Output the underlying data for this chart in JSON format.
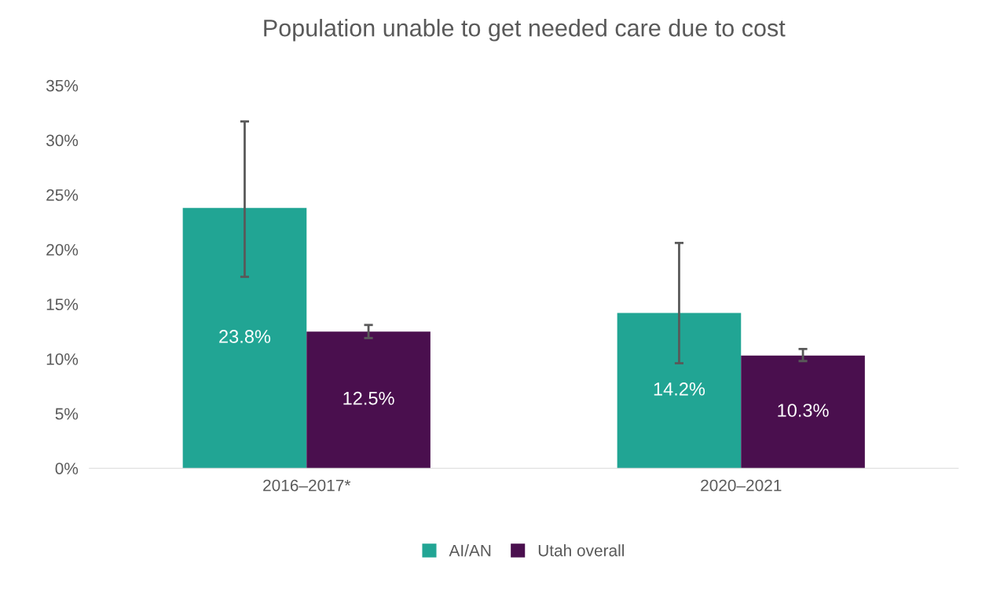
{
  "chart_data": {
    "type": "bar",
    "title": "Population unable to get needed care due to cost",
    "categories": [
      "2016–2017*",
      "2020–2021"
    ],
    "series": [
      {
        "name": "AI/AN",
        "color": "#21a594",
        "values": [
          23.8,
          14.2
        ],
        "errors": [
          [
            17.5,
            31.7
          ],
          [
            9.6,
            20.6
          ]
        ],
        "value_labels": [
          "23.8%",
          "14.2%"
        ]
      },
      {
        "name": "Utah overall",
        "color": "#4a0f4e",
        "values": [
          12.5,
          10.3
        ],
        "errors": [
          [
            11.9,
            13.1
          ],
          [
            9.8,
            10.9
          ]
        ],
        "value_labels": [
          "12.5%",
          "10.3%"
        ]
      }
    ],
    "ylim": [
      0,
      35
    ],
    "yticks": [
      {
        "value": 0,
        "label": "0%"
      },
      {
        "value": 5,
        "label": "5%"
      },
      {
        "value": 10,
        "label": "10%"
      },
      {
        "value": 15,
        "label": "15%"
      },
      {
        "value": 20,
        "label": "20%"
      },
      {
        "value": 25,
        "label": "25%"
      },
      {
        "value": 30,
        "label": "30%"
      },
      {
        "value": 35,
        "label": "35%"
      }
    ],
    "grid": false,
    "legend": "bottom"
  }
}
